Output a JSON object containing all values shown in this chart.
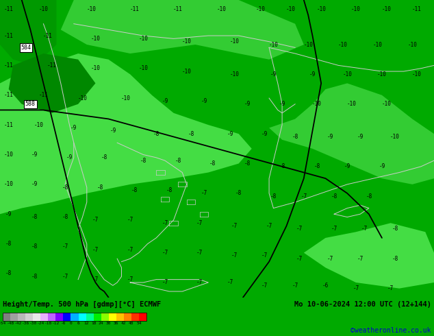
{
  "title_left": "Height/Temp. 500 hPa [gdmp][°C] ECMWF",
  "title_right": "Mo 10-06-2024 12:00 UTC (12+144)",
  "credit": "©weatheronline.co.uk",
  "colorbar_values": [
    -54,
    -48,
    -42,
    -36,
    -30,
    -24,
    -18,
    -12,
    -6,
    0,
    6,
    12,
    18,
    24,
    30,
    36,
    42,
    48,
    54
  ],
  "colorbar_colors": [
    "#808080",
    "#a0a0a0",
    "#b8b8b8",
    "#d0d0d0",
    "#e8e8e8",
    "#e8b0ff",
    "#c060ff",
    "#8000ff",
    "#0000ff",
    "#00b0ff",
    "#00ffff",
    "#00ff90",
    "#00ee00",
    "#88ff00",
    "#ffff00",
    "#ffc000",
    "#ff8000",
    "#ff3000",
    "#ff0000"
  ],
  "bg_color": "#00aa00",
  "map_bg": "#00bb00",
  "figsize": [
    6.34,
    4.9
  ],
  "dpi": 100,
  "temp_labels": [
    [
      2,
      97,
      "-11"
    ],
    [
      10,
      97,
      "-10"
    ],
    [
      21,
      97,
      "-10"
    ],
    [
      31,
      97,
      "-11"
    ],
    [
      41,
      97,
      "-11"
    ],
    [
      51,
      97,
      "-10"
    ],
    [
      60,
      97,
      "-10"
    ],
    [
      67,
      97,
      "-10"
    ],
    [
      74,
      97,
      "-10"
    ],
    [
      82,
      97,
      "-10"
    ],
    [
      89,
      97,
      "-10"
    ],
    [
      96,
      97,
      "-11"
    ],
    [
      2,
      88,
      "-11"
    ],
    [
      11,
      88,
      "-11"
    ],
    [
      22,
      87,
      "-10"
    ],
    [
      33,
      87,
      "-10"
    ],
    [
      43,
      86,
      "-10"
    ],
    [
      54,
      86,
      "-10"
    ],
    [
      63,
      85,
      "-10"
    ],
    [
      71,
      85,
      "-10"
    ],
    [
      79,
      85,
      "-10"
    ],
    [
      87,
      85,
      "-10"
    ],
    [
      95,
      85,
      "-10"
    ],
    [
      2,
      78,
      "-11"
    ],
    [
      12,
      78,
      "-11"
    ],
    [
      22,
      77,
      "-10"
    ],
    [
      33,
      77,
      "-10"
    ],
    [
      43,
      76,
      "-10"
    ],
    [
      54,
      75,
      "-10"
    ],
    [
      63,
      75,
      "-9"
    ],
    [
      72,
      75,
      "-9"
    ],
    [
      80,
      75,
      "-10"
    ],
    [
      88,
      75,
      "-10"
    ],
    [
      96,
      75,
      "-10"
    ],
    [
      2,
      68,
      "-11"
    ],
    [
      10,
      68,
      "-11"
    ],
    [
      19,
      67,
      "-10"
    ],
    [
      29,
      67,
      "-10"
    ],
    [
      38,
      66,
      "-9"
    ],
    [
      47,
      66,
      "-9"
    ],
    [
      57,
      65,
      "-9"
    ],
    [
      65,
      65,
      "-9"
    ],
    [
      73,
      65,
      "-10"
    ],
    [
      81,
      65,
      "-10"
    ],
    [
      89,
      65,
      "-10"
    ],
    [
      2,
      58,
      "-11"
    ],
    [
      9,
      58,
      "-10"
    ],
    [
      17,
      57,
      "-9"
    ],
    [
      26,
      56,
      "-9"
    ],
    [
      36,
      55,
      "-8"
    ],
    [
      44,
      55,
      "-8"
    ],
    [
      53,
      55,
      "-9"
    ],
    [
      61,
      55,
      "-9"
    ],
    [
      68,
      54,
      "-8"
    ],
    [
      76,
      54,
      "-9"
    ],
    [
      83,
      54,
      "-9"
    ],
    [
      91,
      54,
      "-10"
    ],
    [
      2,
      48,
      "-10"
    ],
    [
      8,
      48,
      "-9"
    ],
    [
      16,
      47,
      "-9"
    ],
    [
      24,
      47,
      "-8"
    ],
    [
      33,
      46,
      "-8"
    ],
    [
      41,
      46,
      "-8"
    ],
    [
      49,
      45,
      "-8"
    ],
    [
      57,
      45,
      "-8"
    ],
    [
      65,
      44,
      "-8"
    ],
    [
      73,
      44,
      "-8"
    ],
    [
      80,
      44,
      "-9"
    ],
    [
      88,
      44,
      "-9"
    ],
    [
      2,
      38,
      "-10"
    ],
    [
      8,
      38,
      "-9"
    ],
    [
      15,
      37,
      "-8"
    ],
    [
      23,
      37,
      "-8"
    ],
    [
      31,
      36,
      "-8"
    ],
    [
      39,
      36,
      "-8"
    ],
    [
      47,
      35,
      "-7"
    ],
    [
      55,
      35,
      "-8"
    ],
    [
      63,
      34,
      "-8"
    ],
    [
      70,
      34,
      "-7"
    ],
    [
      77,
      34,
      "-8"
    ],
    [
      85,
      34,
      "-8"
    ],
    [
      2,
      28,
      "-9"
    ],
    [
      8,
      27,
      "-8"
    ],
    [
      15,
      27,
      "-8"
    ],
    [
      22,
      26,
      "-7"
    ],
    [
      30,
      26,
      "-7"
    ],
    [
      38,
      25,
      "-7"
    ],
    [
      46,
      25,
      "-7"
    ],
    [
      54,
      24,
      "-7"
    ],
    [
      62,
      24,
      "-7"
    ],
    [
      69,
      23,
      "-7"
    ],
    [
      77,
      23,
      "-7"
    ],
    [
      84,
      23,
      "-7"
    ],
    [
      91,
      23,
      "-8"
    ],
    [
      2,
      18,
      "-8"
    ],
    [
      8,
      17,
      "-8"
    ],
    [
      15,
      17,
      "-7"
    ],
    [
      22,
      16,
      "-7"
    ],
    [
      30,
      16,
      "-7"
    ],
    [
      38,
      15,
      "-7"
    ],
    [
      46,
      15,
      "-7"
    ],
    [
      54,
      14,
      "-7"
    ],
    [
      61,
      14,
      "-7"
    ],
    [
      69,
      13,
      "-7"
    ],
    [
      76,
      13,
      "-7"
    ],
    [
      83,
      13,
      "-7"
    ],
    [
      91,
      13,
      "-8"
    ],
    [
      2,
      8,
      "-8"
    ],
    [
      8,
      7,
      "-8"
    ],
    [
      15,
      7,
      "-7"
    ],
    [
      22,
      6,
      "-7"
    ],
    [
      30,
      6,
      "-7"
    ],
    [
      38,
      5,
      "-7"
    ],
    [
      46,
      5,
      "-7"
    ],
    [
      53,
      5,
      "-7"
    ],
    [
      61,
      4,
      "-7"
    ],
    [
      68,
      4,
      "-7"
    ],
    [
      75,
      4,
      "-6"
    ],
    [
      82,
      3,
      "-7"
    ],
    [
      90,
      3,
      "-7"
    ]
  ],
  "geo_labels": [
    [
      6,
      84,
      "584"
    ],
    [
      7,
      65,
      "588"
    ]
  ]
}
